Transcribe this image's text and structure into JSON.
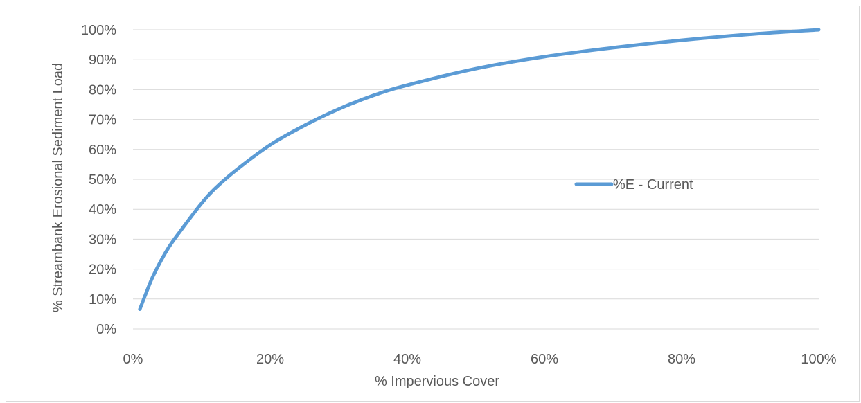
{
  "chart_data": {
    "type": "line",
    "title": "",
    "xlabel": "% Impervious Cover",
    "ylabel": "% Streambank Erosional Sediment Load",
    "xlim": [
      0,
      100
    ],
    "ylim": [
      0,
      100
    ],
    "x_ticks": [
      "0%",
      "20%",
      "40%",
      "60%",
      "80%",
      "100%"
    ],
    "y_ticks": [
      "0%",
      "10%",
      "20%",
      "30%",
      "40%",
      "50%",
      "60%",
      "70%",
      "80%",
      "90%",
      "100%"
    ],
    "grid": "horizontal",
    "legend_position": "center-right",
    "series": [
      {
        "name": "%E - Current",
        "color": "#5b9bd5",
        "x": [
          1,
          2,
          3,
          5,
          7,
          10,
          12,
          15,
          20,
          25,
          30,
          35,
          40,
          50,
          60,
          70,
          80,
          90,
          100
        ],
        "values": [
          6.6,
          12.5,
          18,
          26.5,
          33,
          42,
          47,
          53,
          61.5,
          68,
          73.5,
          78,
          81.5,
          87,
          91,
          94,
          96.5,
          98.5,
          100
        ]
      }
    ]
  }
}
